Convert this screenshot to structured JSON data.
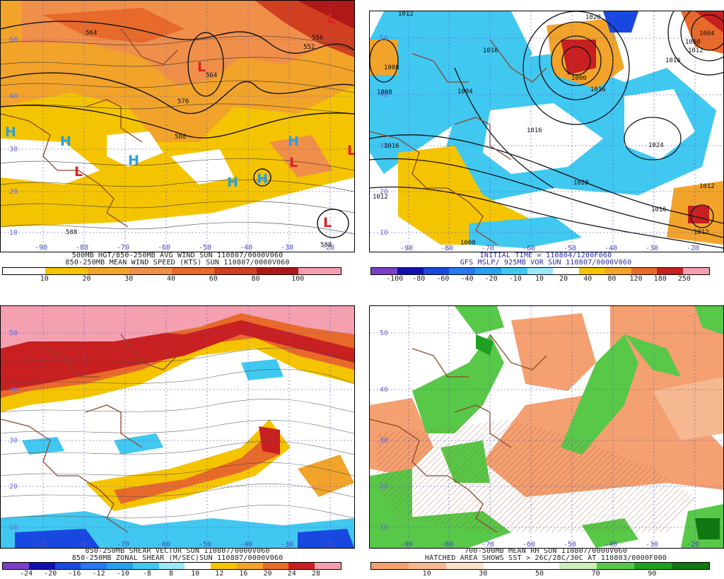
{
  "panels": [
    {
      "id": "tl",
      "caption1": "500MB HGT/850-250MB AVG WIND SUN 110807/0000V060",
      "caption2": "850-250MB MEAN WIND SPEED (KTS) SUN 110807/0000V060",
      "lat_labels": [
        "50",
        "40",
        "30",
        "20",
        "10"
      ],
      "lon_labels": [
        "-90",
        "-80",
        "-70",
        "-60",
        "-50",
        "-40",
        "-30",
        "-20"
      ],
      "contour_labels": [
        "564",
        "556",
        "552",
        "564",
        "576",
        "588",
        "588",
        "588"
      ],
      "markers": [
        {
          "t": "L",
          "c": "#e02020"
        },
        {
          "t": "L",
          "c": "#e02020"
        },
        {
          "t": "H",
          "c": "#2aa0e0"
        },
        {
          "t": "H",
          "c": "#2aa0e0"
        },
        {
          "t": "H",
          "c": "#2aa0e0"
        },
        {
          "t": "L",
          "c": "#e02020"
        },
        {
          "t": "H",
          "c": "#2aa0e0"
        },
        {
          "t": "H",
          "c": "#2aa0e0"
        },
        {
          "t": "H",
          "c": "#2aa0e0"
        },
        {
          "t": "L",
          "c": "#e02020"
        },
        {
          "t": "L",
          "c": "#e02020"
        },
        {
          "t": "L",
          "c": "#e02020"
        }
      ],
      "colorbar_colors": [
        "#ffffff",
        "#f5c400",
        "#f2a32a",
        "#f08f4a",
        "#e86a2a",
        "#d04020",
        "#b01818",
        "#f4a0b0"
      ],
      "colorbar_labels": [
        "10",
        "20",
        "30",
        "40",
        "60",
        "80",
        "100"
      ]
    },
    {
      "id": "tr",
      "caption1": "INITIAL TIME = 110804/1200F060",
      "caption2": "GFS MSLP/ 925MB VOR SUN 110807/0000V060",
      "lat_labels": [
        "50",
        "40",
        "30",
        "20",
        "10"
      ],
      "lon_labels": [
        "-90",
        "-80",
        "-70",
        "-60",
        "-50",
        "-40",
        "-30",
        "-20"
      ],
      "contour_labels": [
        "1012",
        "1020",
        "1004",
        "1008",
        "1016",
        "1008",
        "1004",
        "1000",
        "1012",
        "1016",
        "1008",
        "1016",
        "1024",
        "1020",
        "1016",
        "1016",
        "1012",
        "1012",
        "1016",
        "1008",
        "1012"
      ],
      "colorbar_colors": [
        "#7a40c8",
        "#1010b0",
        "#1848e0",
        "#2878f0",
        "#28a0f0",
        "#40c8f0",
        "#9ce8f8",
        "#ffffff",
        "#f5c400",
        "#f2a32a",
        "#e86a2a",
        "#c82020",
        "#f4a0b0"
      ],
      "colorbar_labels": [
        "-100",
        "-80",
        "-60",
        "-40",
        "-20",
        "-10",
        "10",
        "20",
        "40",
        "80",
        "120",
        "180",
        "250"
      ]
    },
    {
      "id": "bl",
      "caption1": "850-250MB SHEAR VECTOR SUN 110807/0000V060",
      "caption2": "850-250MB ZONAL SHEAR (M/SEC)SUN 110807/0000V060",
      "lat_labels": [
        "50",
        "40",
        "30",
        "20",
        "10"
      ],
      "lon_labels": [
        "-90",
        "-80",
        "-70",
        "-60",
        "-50",
        "-40",
        "-30",
        "-20"
      ],
      "colorbar_colors": [
        "#7a40c8",
        "#1010b0",
        "#1848e0",
        "#2878f0",
        "#28a0f0",
        "#40c8f0",
        "#9ce8f8",
        "#ffffff",
        "#f5c400",
        "#f2a32a",
        "#e86a2a",
        "#c82020",
        "#f4a0b0"
      ],
      "colorbar_labels": [
        "-24",
        "-20",
        "-16",
        "-12",
        "-10",
        "-8",
        "8",
        "10",
        "12",
        "16",
        "20",
        "24",
        "28"
      ]
    },
    {
      "id": "br",
      "caption1": "700-500MB MEAN RH SUN 110807/0000V060",
      "caption2": "HATCHED AREA SHOWS SST > 26C/28C/30C AT 110803/0000F000",
      "lat_labels": [
        "50",
        "40",
        "30",
        "20",
        "10"
      ],
      "lon_labels": [
        "-90",
        "-80",
        "-70",
        "-60",
        "-50",
        "-40",
        "-30",
        "-20"
      ],
      "colorbar_colors": [
        "#f4a070",
        "#f6b890",
        "#fde0c8",
        "#ffffff",
        "#ffffff",
        "#c8f0b8",
        "#58c848",
        "#20a020",
        "#107810"
      ],
      "colorbar_labels": [
        "10",
        "30",
        "50",
        "70",
        "90"
      ]
    }
  ]
}
